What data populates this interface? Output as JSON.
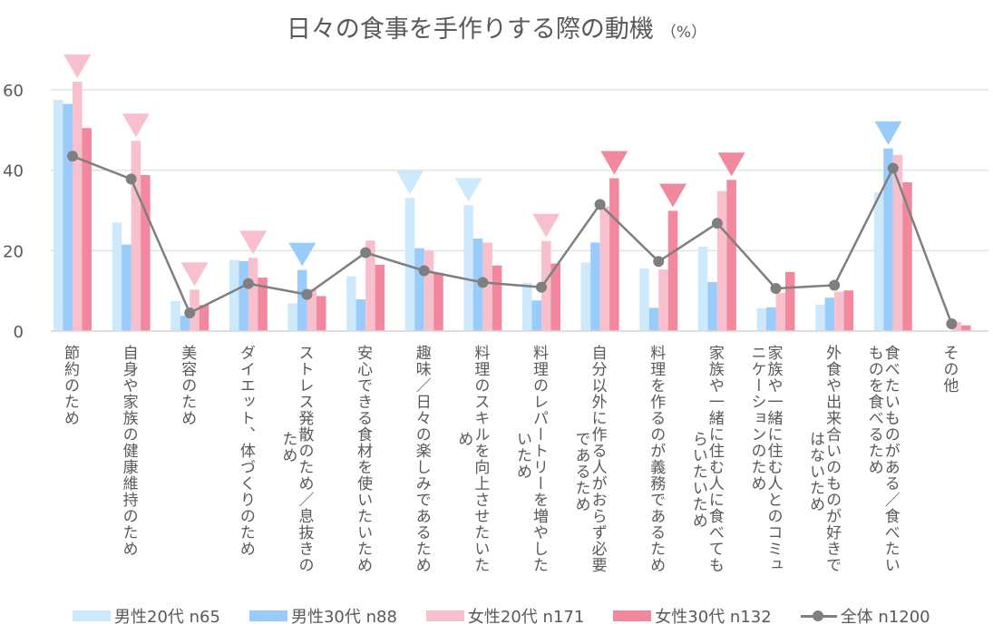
{
  "title": "日々の食事を手作りする際の動機",
  "unit": "（%）",
  "chart_data": {
    "type": "bar",
    "title": "日々の食事を手作りする際の動機（%）",
    "xlabel": "",
    "ylabel": "",
    "ylim": [
      0,
      70
    ],
    "yticks": [
      0,
      20,
      40,
      60
    ],
    "grid": true,
    "legend_position": "bottom",
    "categories": [
      "節約のため",
      "自身や家族の健康維持のため",
      "美容のため",
      "ダイエット、体づくりのため",
      "ストレス発散のため／息抜きのため",
      "安心できる食材を使いたいため",
      "趣味／日々の楽しみであるため",
      "料理のスキルを向上させたいため",
      "料理のレパートリーを増やしたいため",
      "自分以外に作る人がおらず必要であるため",
      "料理を作るのが義務であるため",
      "家族や一緒に住む人に食べてもらいたいため",
      "家族や一緒に住む人とのコミュニケーションのため",
      "外食や出来合いのものが好きではないため",
      "食べたいものがある／食べたいものを食べるため",
      "その他"
    ],
    "category_lines": [
      [
        "節約のため"
      ],
      [
        "自身や家族の健康維持のため"
      ],
      [
        "美容のため"
      ],
      [
        "ダイエット、体づくりのため"
      ],
      [
        "ストレス発散のため／息抜きの",
        "ため"
      ],
      [
        "安心できる食材を使いたいため"
      ],
      [
        "趣味／日々の楽しみであるため"
      ],
      [
        "料理のスキルを向上させたいた",
        "め"
      ],
      [
        "料理のレパートリーを増やした",
        "いため"
      ],
      [
        "自分以外に作る人がおらず必要",
        "であるため"
      ],
      [
        "料理を作るのが義務であるため"
      ],
      [
        "家族や一緒に住む人に食べても",
        "らいたいため"
      ],
      [
        "家族や一緒に住む人とのコミュ",
        "ニケーションのため"
      ],
      [
        "外食や出来合いのものが好きで",
        "はないため"
      ],
      [
        "食べたいものがある／食べたい",
        "ものを食べるため"
      ],
      [
        "その他"
      ]
    ],
    "series": [
      {
        "name": "男性20代 n65",
        "type": "bar",
        "color": "#cce9fd",
        "values": [
          57.5,
          27.0,
          7.5,
          17.7,
          6.9,
          13.6,
          33.1,
          31.3,
          12.0,
          17.0,
          15.6,
          21.0,
          5.7,
          6.6,
          34.5,
          0.0
        ]
      },
      {
        "name": "男性30代 n88",
        "type": "bar",
        "color": "#99ccfb",
        "values": [
          56.5,
          21.5,
          3.8,
          17.4,
          15.2,
          7.9,
          20.6,
          23.0,
          7.6,
          22.0,
          5.8,
          12.2,
          5.9,
          8.3,
          45.4,
          0.0
        ]
      },
      {
        "name": "女性20代 n171",
        "type": "bar",
        "color": "#f8c0cc",
        "values": [
          62.0,
          47.3,
          10.3,
          18.2,
          10.5,
          22.5,
          20.0,
          22.0,
          22.4,
          31.0,
          15.3,
          34.8,
          9.5,
          9.8,
          43.8,
          2.3
        ]
      },
      {
        "name": "女性30代 n132",
        "type": "bar",
        "color": "#f2889d",
        "values": [
          50.5,
          38.8,
          6.5,
          13.3,
          8.7,
          16.5,
          14.5,
          16.3,
          16.8,
          38.0,
          29.9,
          37.6,
          14.7,
          10.1,
          37.0,
          1.4
        ]
      },
      {
        "name": "全体 n1200",
        "type": "line",
        "color": "#7f7f7f",
        "values": [
          43.5,
          37.8,
          4.5,
          11.8,
          9.1,
          19.5,
          15.0,
          12.1,
          10.9,
          31.5,
          17.3,
          26.8,
          10.6,
          11.4,
          40.5,
          1.8
        ]
      }
    ],
    "highlight_markers": [
      {
        "category_index": 0,
        "series_index": 2
      },
      {
        "category_index": 1,
        "series_index": 2
      },
      {
        "category_index": 2,
        "series_index": 2
      },
      {
        "category_index": 3,
        "series_index": 2
      },
      {
        "category_index": 4,
        "series_index": 1
      },
      {
        "category_index": 6,
        "series_index": 0
      },
      {
        "category_index": 7,
        "series_index": 0
      },
      {
        "category_index": 8,
        "series_index": 2
      },
      {
        "category_index": 9,
        "series_index": 3
      },
      {
        "category_index": 10,
        "series_index": 3
      },
      {
        "category_index": 11,
        "series_index": 3
      },
      {
        "category_index": 14,
        "series_index": 1
      }
    ]
  },
  "legend": [
    {
      "label": "男性20代 n65",
      "color": "#cce9fd",
      "kind": "bar"
    },
    {
      "label": "男性30代 n88",
      "color": "#99ccfb",
      "kind": "bar"
    },
    {
      "label": "女性20代 n171",
      "color": "#f8c0cc",
      "kind": "bar"
    },
    {
      "label": "女性30代 n132",
      "color": "#f2889d",
      "kind": "bar"
    },
    {
      "label": "全体 n1200",
      "color": "#7f7f7f",
      "kind": "line"
    }
  ]
}
